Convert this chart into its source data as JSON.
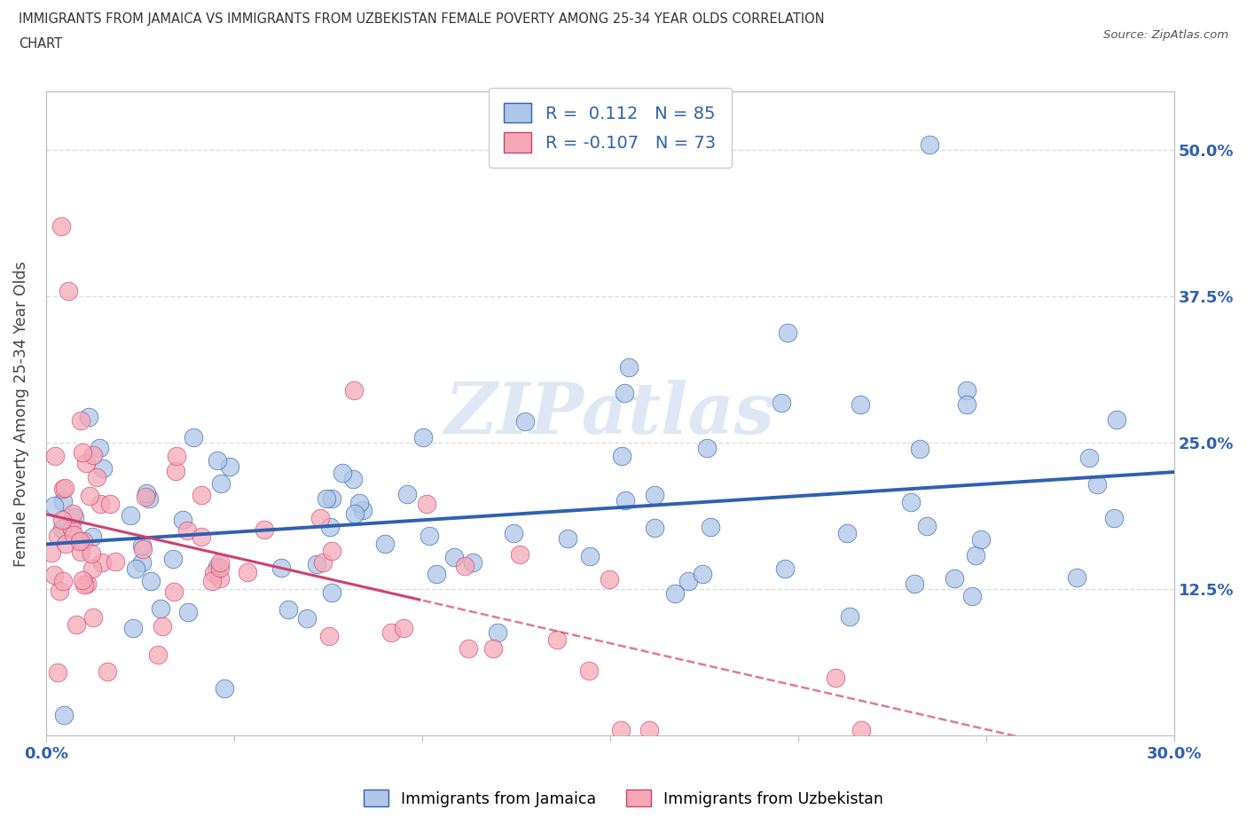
{
  "title_line1": "IMMIGRANTS FROM JAMAICA VS IMMIGRANTS FROM UZBEKISTAN FEMALE POVERTY AMONG 25-34 YEAR OLDS CORRELATION",
  "title_line2": "CHART",
  "source_text": "Source: ZipAtlas.com",
  "ylabel": "Female Poverty Among 25-34 Year Olds",
  "xlim": [
    0.0,
    0.3
  ],
  "ylim": [
    0.0,
    0.55
  ],
  "xticks": [
    0.0,
    0.05,
    0.1,
    0.15,
    0.2,
    0.25,
    0.3
  ],
  "yticks": [
    0.0,
    0.125,
    0.25,
    0.375,
    0.5
  ],
  "yticklabels": [
    "",
    "12.5%",
    "25.0%",
    "37.5%",
    "50.0%"
  ],
  "jamaica_color": "#aec6e8",
  "uzbekistan_color": "#f4a8b8",
  "jamaica_line_color": "#3060b0",
  "uzbekistan_line_color": "#d04070",
  "tick_label_color": "#3060b0",
  "R_jamaica": 0.112,
  "N_jamaica": 85,
  "R_uzbekistan": -0.107,
  "N_uzbekistan": 73,
  "legend_label_jamaica": "Immigrants from Jamaica",
  "legend_label_uzbekistan": "Immigrants from Uzbekistan",
  "watermark_text": "ZIPatlas",
  "background_color": "#ffffff",
  "grid_color": "#dddddd",
  "spine_color": "#bbbbbb"
}
